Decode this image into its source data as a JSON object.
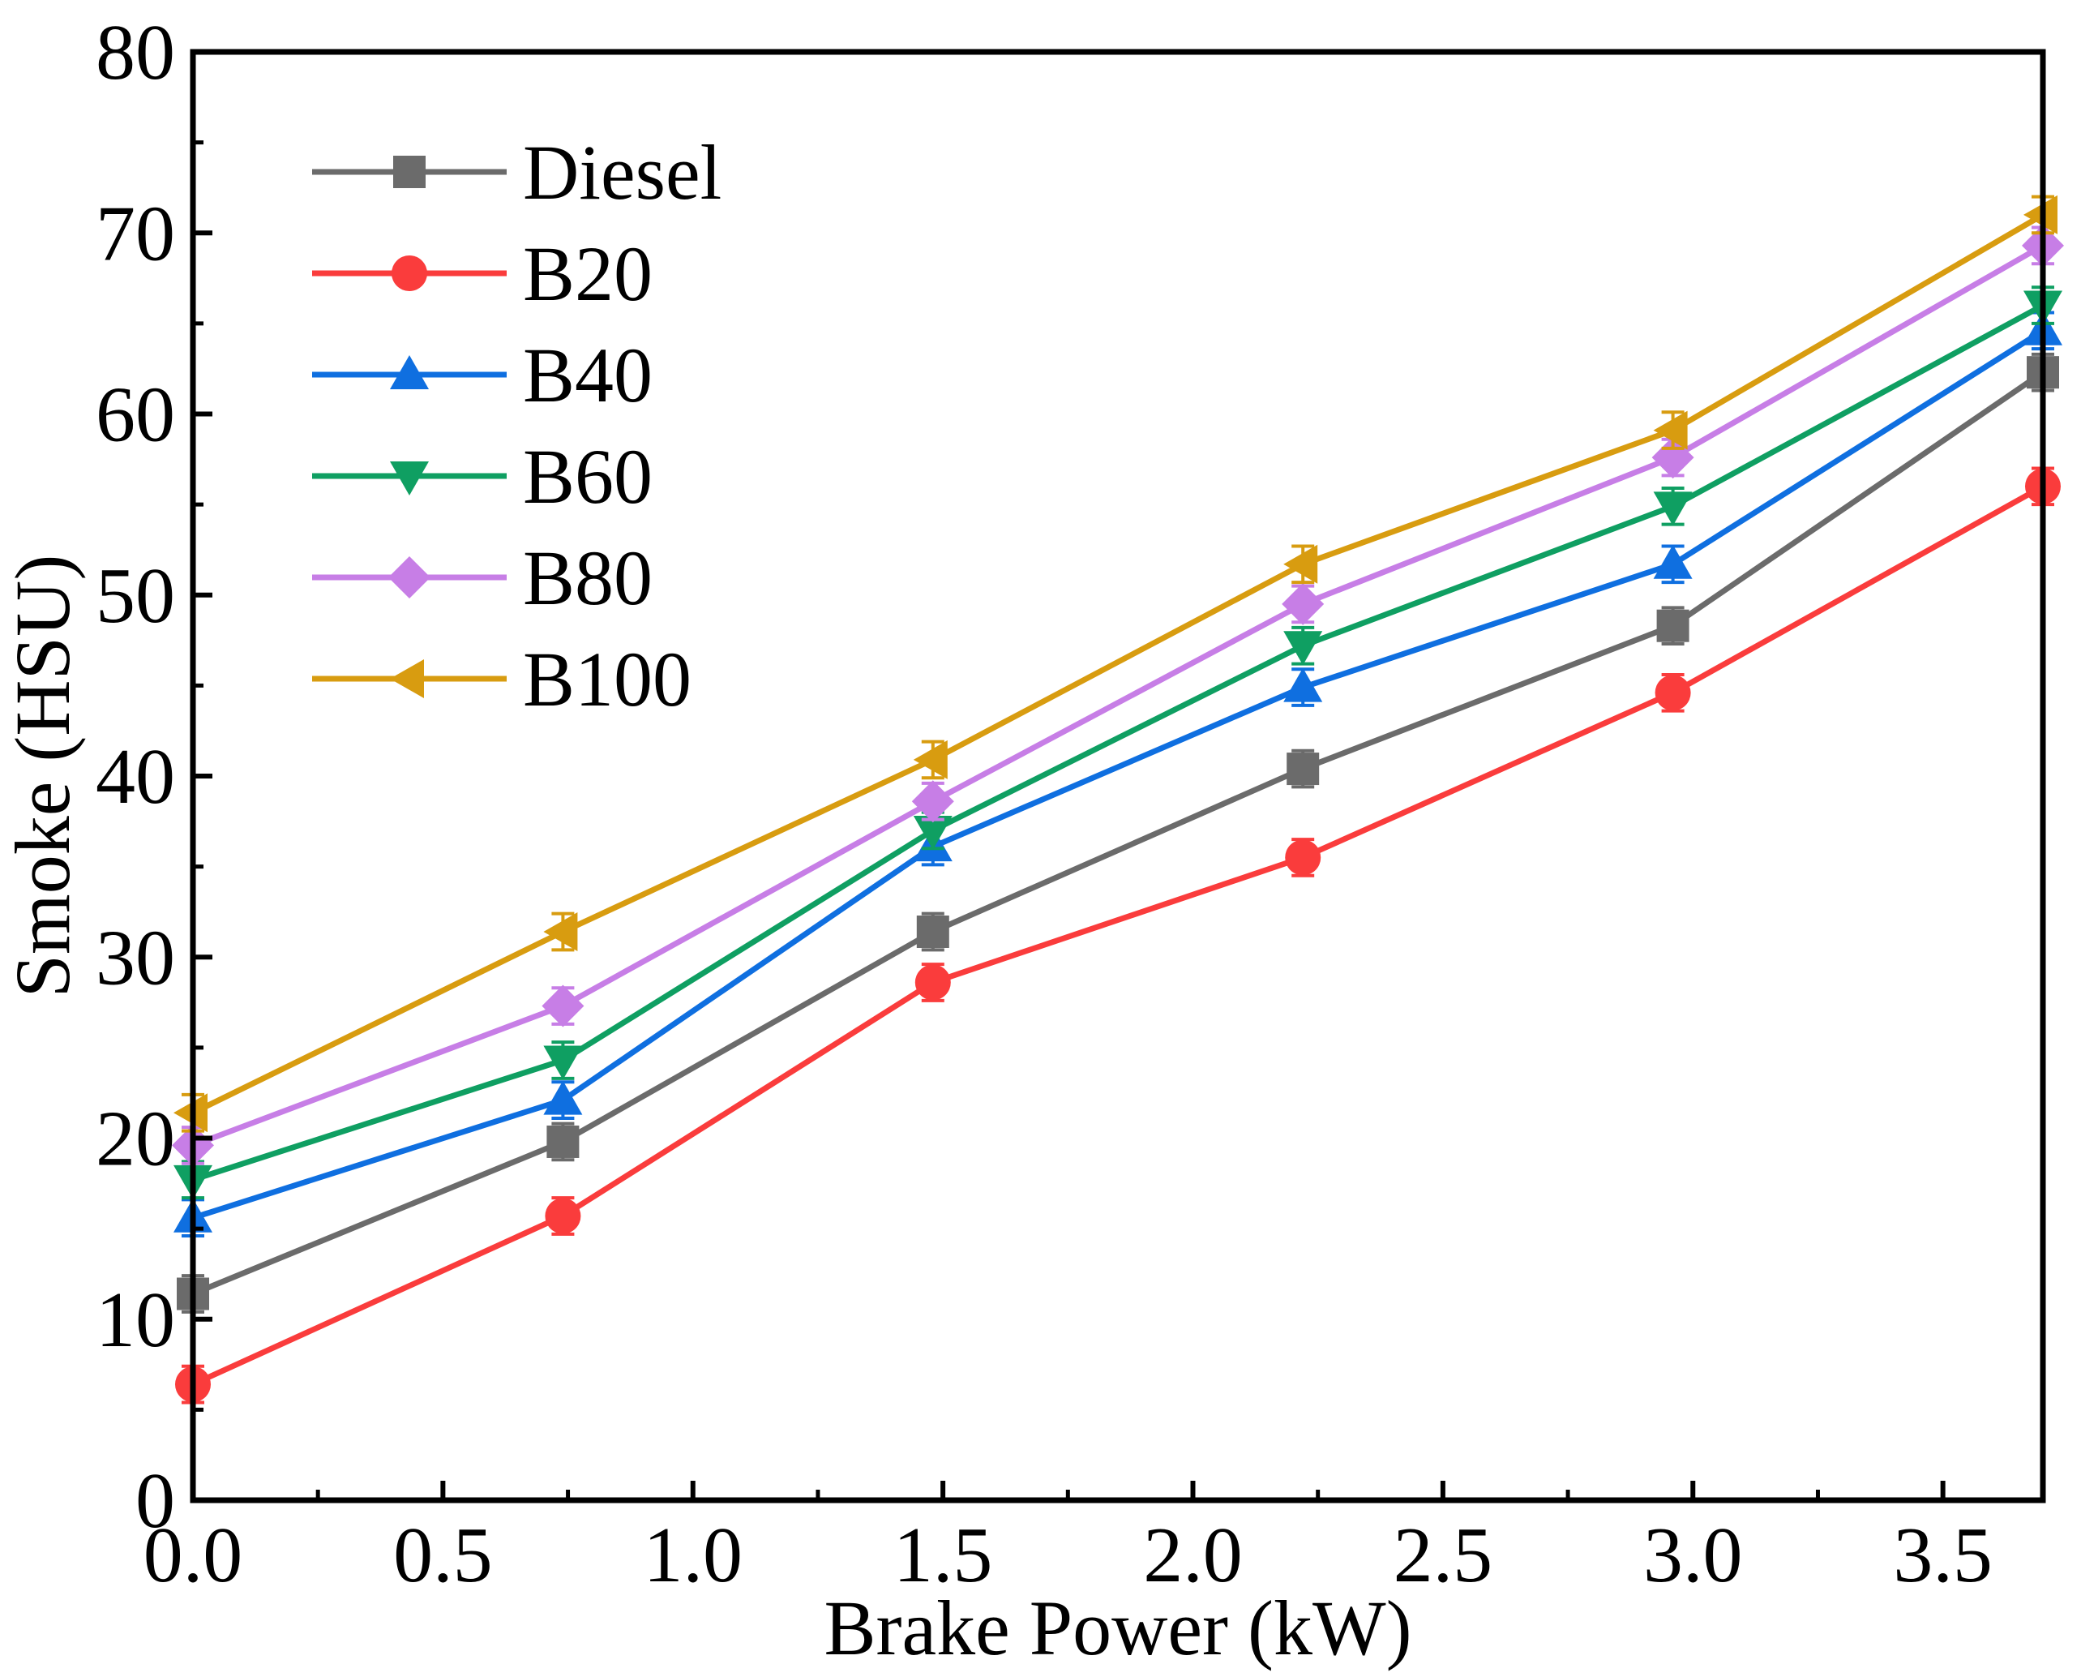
{
  "chart_data": {
    "type": "line",
    "title": "",
    "xlabel": "Brake Power (kW)",
    "ylabel": "Smoke (HSU)",
    "xlim": [
      0,
      3.7
    ],
    "ylim": [
      0,
      80
    ],
    "xticks": [
      0,
      0.5,
      1.0,
      1.5,
      2.0,
      2.5,
      3.0,
      3.5
    ],
    "xtick_labels": [
      "0.0",
      "0.5",
      "1.0",
      "1.5",
      "2.0",
      "2.5",
      "3.0",
      "3.5"
    ],
    "yticks": [
      0,
      10,
      20,
      30,
      40,
      50,
      60,
      70,
      80
    ],
    "ytick_labels": [
      "0",
      "10",
      "20",
      "30",
      "40",
      "50",
      "60",
      "70",
      "80"
    ],
    "grid": false,
    "legend_position": "top-left",
    "x": [
      0,
      0.74,
      1.48,
      2.22,
      2.96,
      3.7
    ],
    "series": [
      {
        "name": "Diesel",
        "color": "#6b6b6b",
        "marker": "square",
        "values": [
          11.4,
          19.8,
          31.4,
          40.4,
          48.3,
          62.3
        ],
        "errors": [
          1.0,
          1.0,
          1.0,
          1.0,
          1.0,
          1.0
        ]
      },
      {
        "name": "B20",
        "color": "#fa3c3c",
        "marker": "circle",
        "values": [
          6.4,
          15.7,
          28.6,
          35.5,
          44.6,
          56.0
        ],
        "errors": [
          1.0,
          1.0,
          1.0,
          1.0,
          1.0,
          1.0
        ]
      },
      {
        "name": "B40",
        "color": "#0f6fe0",
        "marker": "triangle-up",
        "values": [
          15.6,
          22.1,
          36.1,
          44.9,
          51.7,
          64.6
        ],
        "errors": [
          1.0,
          1.0,
          1.0,
          1.0,
          1.0,
          1.0
        ]
      },
      {
        "name": "B60",
        "color": "#0f9f62",
        "marker": "triangle-down",
        "values": [
          17.7,
          24.3,
          37.0,
          47.2,
          54.9,
          66.0
        ],
        "errors": [
          1.0,
          1.0,
          1.0,
          1.0,
          1.0,
          1.0
        ]
      },
      {
        "name": "B80",
        "color": "#c77ee6",
        "marker": "diamond",
        "values": [
          19.6,
          27.3,
          38.6,
          49.5,
          57.6,
          69.3
        ],
        "errors": [
          1.0,
          1.0,
          1.0,
          1.0,
          1.0,
          1.0
        ]
      },
      {
        "name": "B100",
        "color": "#d89c10",
        "marker": "triangle-left",
        "values": [
          21.4,
          31.4,
          40.9,
          51.7,
          59.1,
          71.0
        ],
        "errors": [
          1.0,
          1.0,
          1.0,
          1.0,
          1.0,
          1.0
        ]
      }
    ]
  }
}
